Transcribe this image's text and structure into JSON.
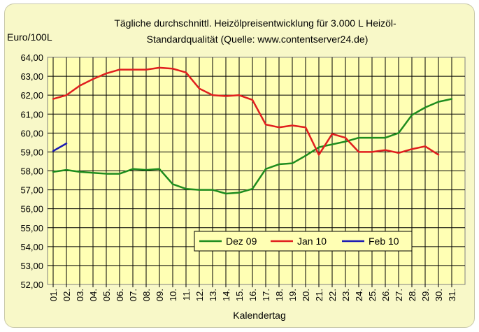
{
  "chart_data": {
    "type": "line",
    "title_line1": "Tägliche durchschnittl. Heizölpreisentwicklung für 3.000 L Heizöl-",
    "title_line2": "Standardqualität (Quelle: www.contentserver24.de)",
    "ylabel": "Euro/100L",
    "xlabel": "Kalendertag",
    "ylim": [
      52,
      64
    ],
    "y_ticks": [
      "52,00",
      "53,00",
      "54,00",
      "55,00",
      "56,00",
      "57,00",
      "58,00",
      "59,00",
      "60,00",
      "61,00",
      "62,00",
      "63,00",
      "64,00"
    ],
    "x_ticks": [
      "01.",
      "02.",
      "03.",
      "04.",
      "05.",
      "06.",
      "07.",
      "08.",
      "09.",
      "10.",
      "11.",
      "12.",
      "13.",
      "14.",
      "15.",
      "16.",
      "17.",
      "18.",
      "19.",
      "20.",
      "21.",
      "22.",
      "23.",
      "24.",
      "25.",
      "26.",
      "27.",
      "28.",
      "29.",
      "30.",
      "31."
    ],
    "grid": true,
    "legend_position": "bottom-right",
    "series": [
      {
        "name": "Dez 09",
        "color": "#1e8c1e",
        "x": [
          1,
          2,
          3,
          4,
          5,
          6,
          7,
          8,
          9,
          10,
          11,
          12,
          13,
          14,
          15,
          16,
          17,
          18,
          19,
          20,
          21,
          22,
          23,
          24,
          25,
          26,
          27,
          28,
          29,
          30,
          31
        ],
        "values": [
          57.95,
          58.05,
          57.95,
          57.9,
          57.85,
          57.85,
          58.1,
          58.05,
          58.1,
          57.3,
          57.05,
          57.0,
          57.0,
          56.8,
          56.85,
          57.05,
          58.1,
          58.35,
          58.4,
          58.8,
          59.25,
          59.4,
          59.55,
          59.75,
          59.75,
          59.75,
          60.0,
          60.95,
          61.35,
          61.65,
          61.8
        ]
      },
      {
        "name": "Jan 10",
        "color": "#e01e1e",
        "x": [
          1,
          2,
          3,
          4,
          5,
          6,
          7,
          8,
          9,
          10,
          11,
          12,
          13,
          14,
          15,
          16,
          17,
          18,
          19,
          20,
          21,
          22,
          23,
          24,
          25,
          26,
          27,
          28,
          29,
          30
        ],
        "values": [
          61.8,
          62.0,
          62.5,
          62.85,
          63.15,
          63.35,
          63.35,
          63.35,
          63.45,
          63.4,
          63.2,
          62.35,
          62.0,
          61.95,
          62.0,
          61.75,
          60.45,
          60.3,
          60.4,
          60.3,
          58.85,
          59.95,
          59.75,
          59.0,
          59.0,
          59.1,
          58.95,
          59.15,
          59.3,
          58.85
        ]
      },
      {
        "name": "Feb 10",
        "color": "#1a1ab4",
        "x": [
          1,
          2
        ],
        "values": [
          59.05,
          59.45
        ]
      }
    ]
  }
}
